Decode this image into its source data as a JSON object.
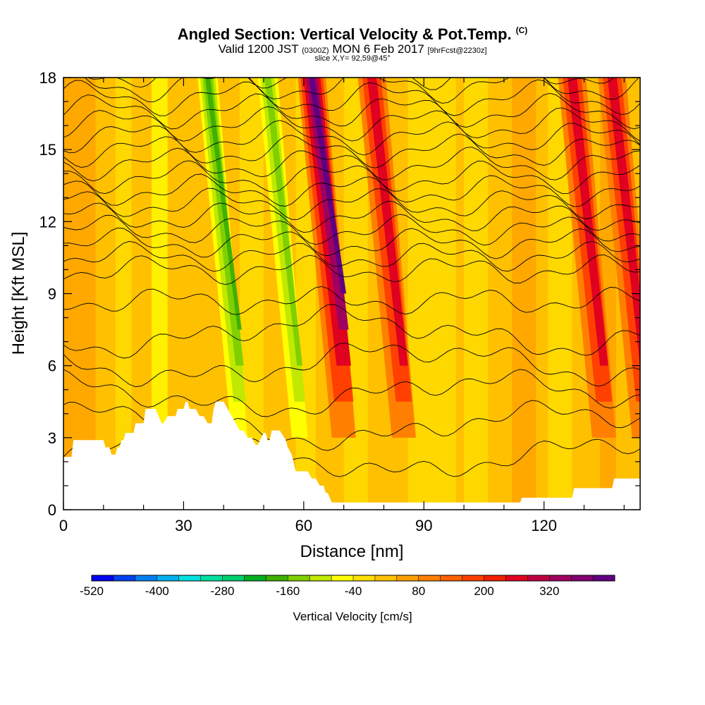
{
  "header": {
    "title": "Angled Section: Vertical Velocity & Pot.Temp.",
    "title_tag": "(C)",
    "valid_prefix": "Valid 1200 JST",
    "valid_utc": "(0300Z)",
    "valid_date": "MON 6 Feb 2017",
    "forecast": "[9hrFcst@2230z]",
    "slice": "slice X,Y= 92,59@45°"
  },
  "chart_data": {
    "type": "heatmap",
    "xlabel": "Distance [nm]",
    "ylabel": "Height [Kft MSL]",
    "xlim": [
      0,
      144
    ],
    "ylim": [
      0,
      18
    ],
    "xticks": [
      0,
      30,
      60,
      90,
      120
    ],
    "yticks": [
      0,
      3,
      6,
      9,
      12,
      15,
      18
    ],
    "colorbar": {
      "label": "Vertical Velocity [cm/s]",
      "tick_labels": [
        "-520",
        "-400",
        "-280",
        "-160",
        "-40",
        "80",
        "200",
        "320"
      ],
      "colors": [
        "#0000f0",
        "#0040f0",
        "#0080f0",
        "#00b0f0",
        "#00e0e0",
        "#00e0a0",
        "#00d070",
        "#00b020",
        "#40b000",
        "#80d000",
        "#c0e800",
        "#ffff00",
        "#ffe000",
        "#ffc000",
        "#ffa000",
        "#ff8000",
        "#ff6000",
        "#ff4000",
        "#f02000",
        "#e00020",
        "#c00040",
        "#a00060",
        "#800070",
        "#600080"
      ]
    },
    "terrain_profile": {
      "x": [
        0,
        2,
        2.5,
        10,
        10.5,
        11.5,
        12,
        13,
        13.5,
        14,
        14.5,
        15,
        15.5,
        17.5,
        18,
        20,
        20.5,
        23,
        24.5,
        25,
        26,
        28,
        28.5,
        30,
        30.5,
        31,
        31.5,
        33,
        34,
        35,
        36,
        37,
        37.5,
        38,
        40,
        41,
        42,
        43,
        44,
        45,
        46,
        47,
        48,
        48.5,
        50,
        50.5,
        51,
        51.5,
        52,
        54,
        55.5,
        56,
        57,
        58,
        60,
        61,
        62,
        63,
        64,
        65,
        65.5,
        66,
        67,
        68,
        76,
        87,
        95,
        100,
        108,
        114,
        114.5,
        120,
        127,
        127.5,
        137,
        137.5,
        144
      ],
      "y": [
        2.2,
        2.2,
        2.9,
        2.9,
        2.6,
        2.6,
        2.3,
        2.3,
        2.6,
        2.6,
        2.9,
        2.9,
        3.2,
        3.2,
        3.6,
        3.6,
        4.2,
        4.2,
        3.6,
        3.6,
        3.9,
        3.9,
        4.2,
        4.2,
        4.5,
        4.5,
        4.2,
        4.2,
        3.9,
        3.9,
        3.6,
        3.6,
        4.2,
        4.5,
        4.5,
        4.2,
        3.9,
        3.6,
        3.3,
        3.3,
        3.0,
        3.0,
        2.7,
        2.7,
        3.2,
        3.2,
        2.9,
        2.9,
        3.3,
        3.3,
        2.9,
        2.6,
        2.3,
        1.6,
        1.6,
        1.6,
        1.3,
        1.3,
        1.0,
        1.0,
        0.7,
        0.7,
        0.3,
        0.3,
        0.3,
        0.3,
        0.3,
        0.3,
        0.3,
        0.3,
        0.5,
        0.5,
        0.5,
        0.9,
        0.9,
        1.3,
        1.3
      ]
    },
    "updraft_bands": [
      {
        "x": 66,
        "top_velocity": 320
      },
      {
        "x": 81,
        "top_velocity": 200
      },
      {
        "x": 131,
        "top_velocity": 200
      },
      {
        "x": 141,
        "top_velocity": 200
      }
    ],
    "downdraft_bands": [
      {
        "x": 40,
        "min_velocity": -160
      },
      {
        "x": 55,
        "min_velocity": -120
      }
    ]
  }
}
